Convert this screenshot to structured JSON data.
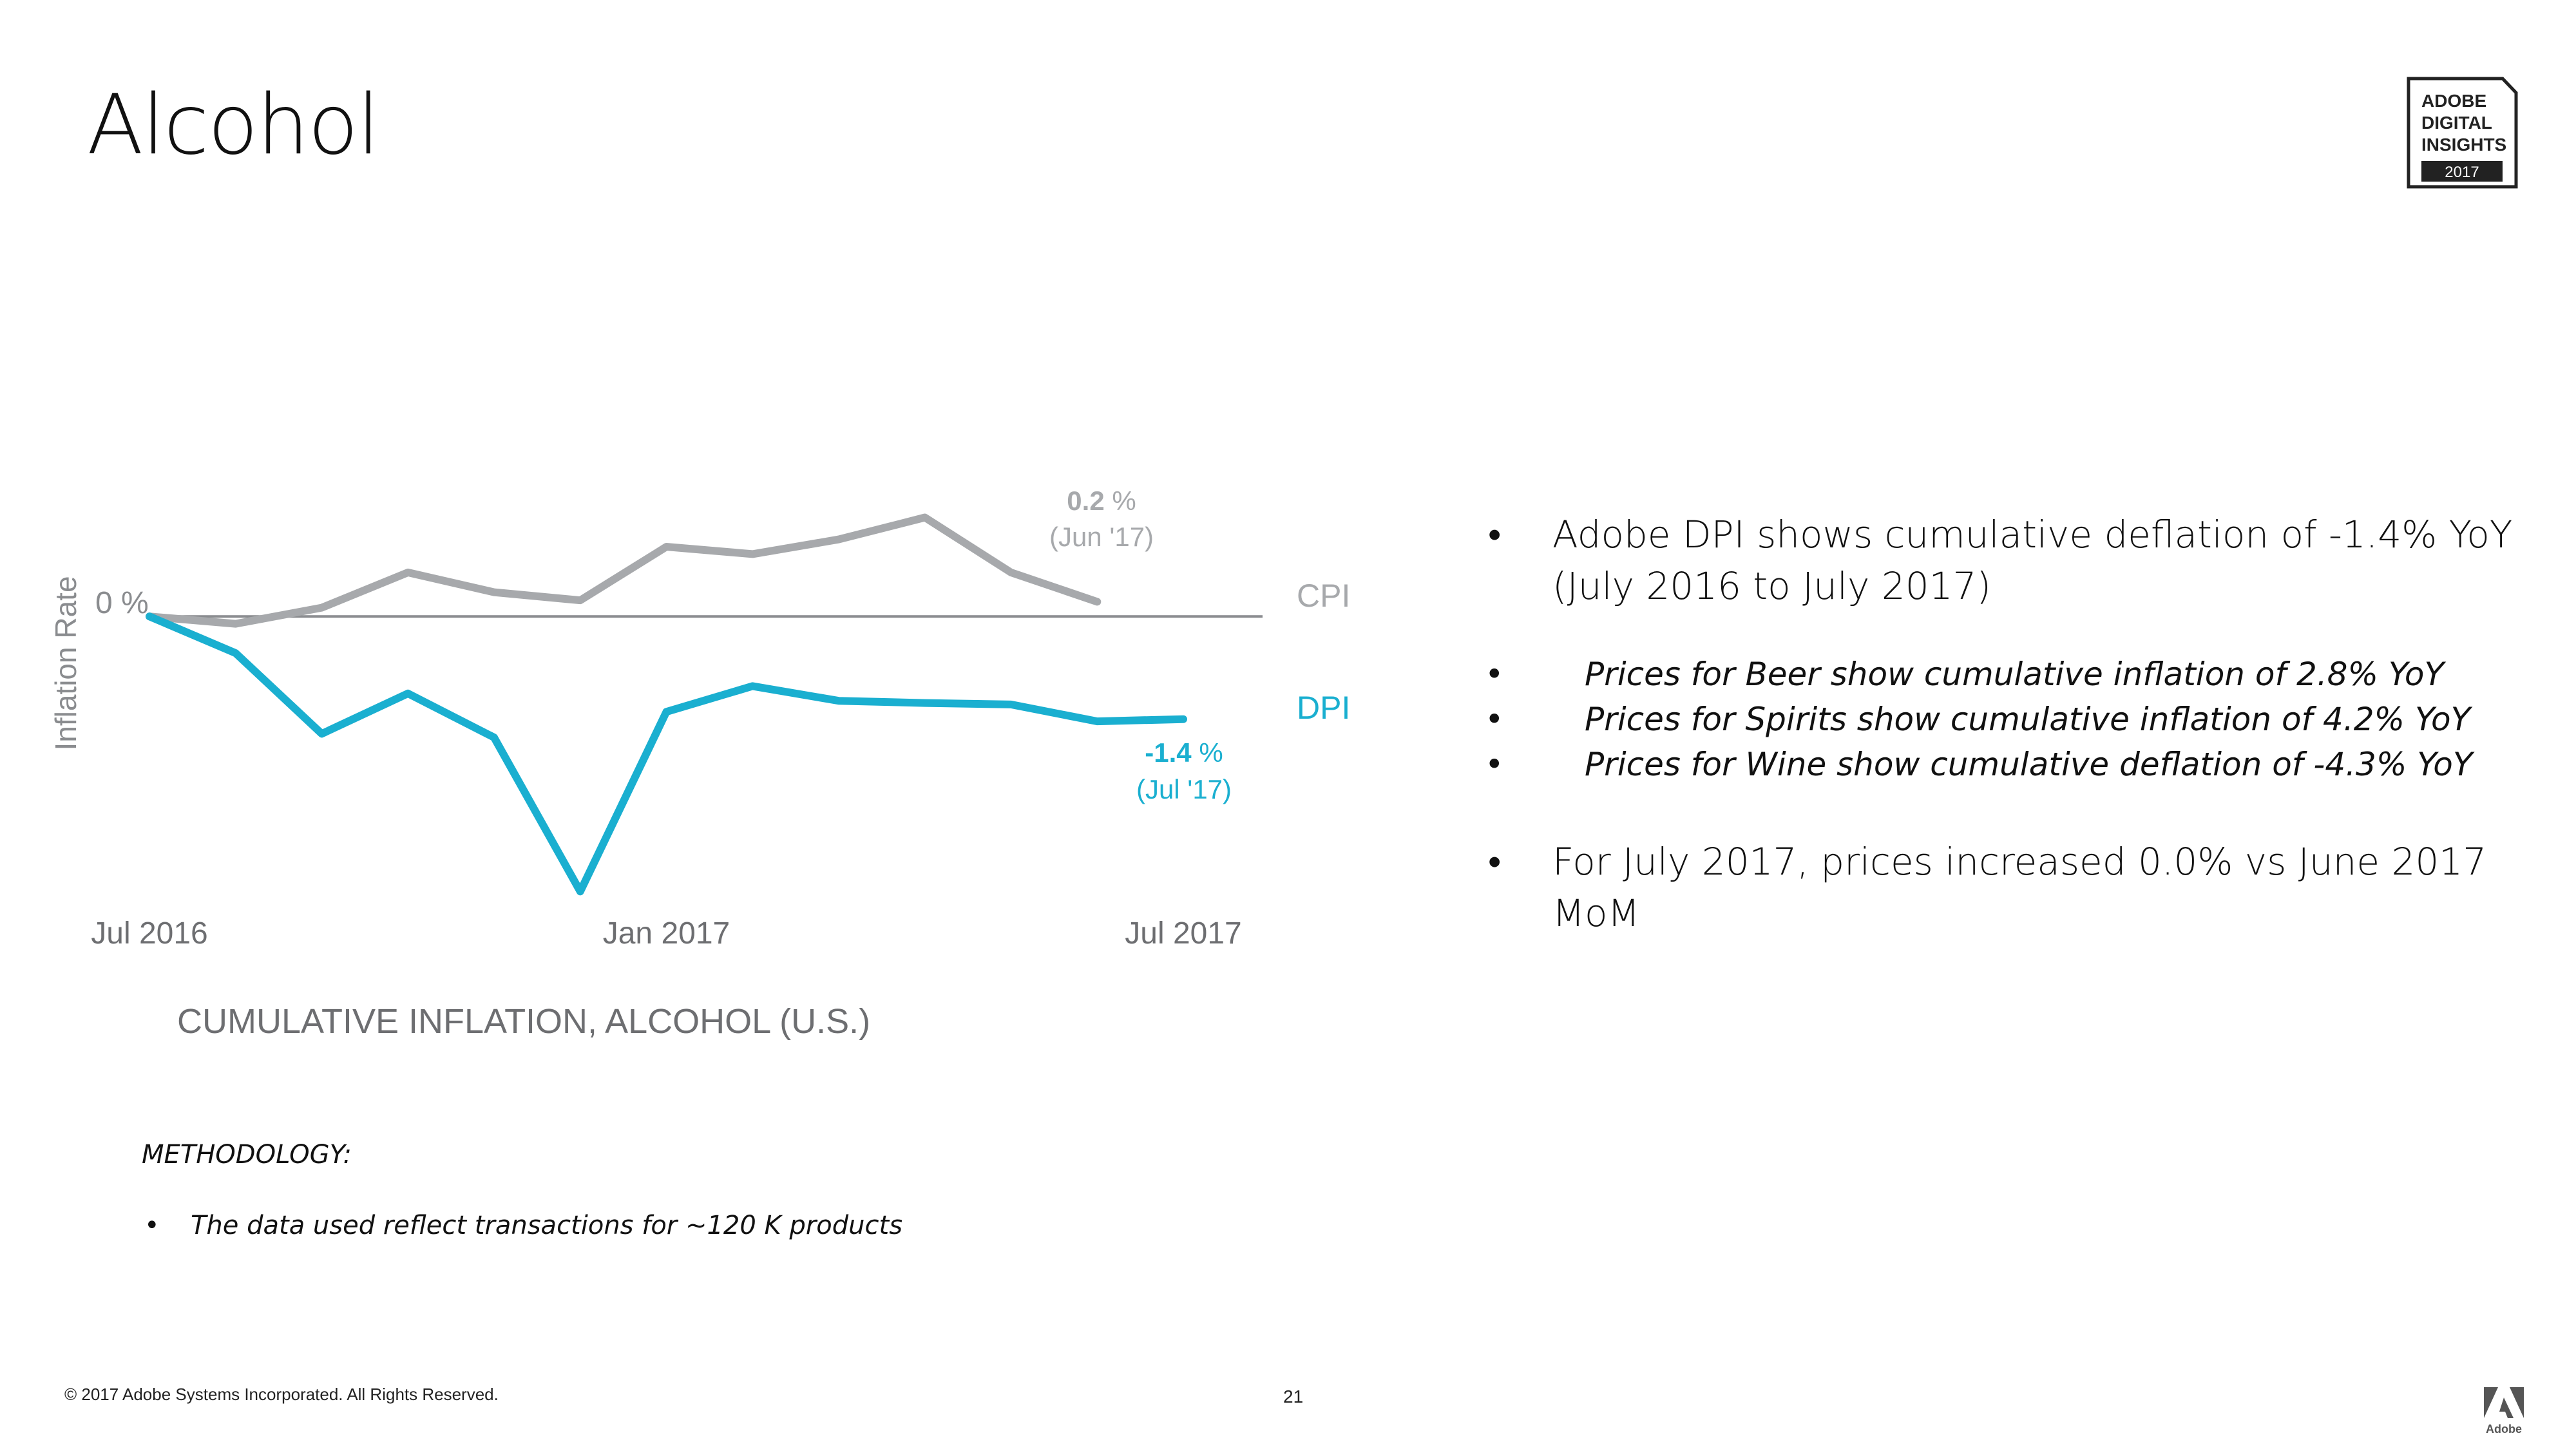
{
  "slide": {
    "title": "Alcohol",
    "badge": {
      "line1": "ADOBE",
      "line2": "DIGITAL",
      "line3": "INSIGHTS",
      "year": "2017"
    },
    "copyright": "© 2017 Adobe Systems Incorporated.  All Rights Reserved.",
    "page_number": "21",
    "logo_text": "Adobe",
    "methodology_label": "METHODOLOGY:",
    "methodology_items": [
      "The data used reflect transactions for ~120 K products"
    ],
    "bullets": [
      "Adobe DPI shows cumulative deflation of -1.4% YoY (July 2016 to July 2017)",
      "For July 2017, prices increased 0.0% vs June 2017 MoM"
    ],
    "sub_bullets": [
      "Prices for Beer show cumulative inflation of 2.8% YoY",
      "Prices for Spirits show cumulative inflation of 4.2% YoY",
      "Prices for Wine show cumulative deflation of -4.3% YoY"
    ]
  },
  "chart_data": {
    "type": "line",
    "title": "CUMULATIVE INFLATION, ALCOHOL (U.S.)",
    "ylabel": "Inflation Rate",
    "xlabel": "",
    "zero_label": "0 %",
    "x_months": [
      "2016-07",
      "2016-08",
      "2016-09",
      "2016-10",
      "2016-11",
      "2016-12",
      "2017-01",
      "2017-02",
      "2017-03",
      "2017-04",
      "2017-05",
      "2017-06",
      "2017-07"
    ],
    "x_ticks": [
      {
        "index": 0,
        "label": "Jul 2016"
      },
      {
        "index": 6,
        "label": "Jan 2017"
      },
      {
        "index": 12,
        "label": "Jul 2017"
      }
    ],
    "ylim": [
      -3.8,
      1.6
    ],
    "series": [
      {
        "name": "CPI",
        "color": "#a7a9ac",
        "values": [
          0.0,
          -0.1,
          0.12,
          0.6,
          0.33,
          0.22,
          0.95,
          0.85,
          1.05,
          1.35,
          0.6,
          0.2,
          null
        ],
        "end_value": "0.2",
        "end_unit": " %",
        "end_date": "(Jun '17)"
      },
      {
        "name": "DPI",
        "color": "#1aafd0",
        "values": [
          0.0,
          -0.5,
          -1.6,
          -1.05,
          -1.65,
          -3.75,
          -1.3,
          -0.95,
          -1.15,
          -1.18,
          -1.2,
          -1.43,
          -1.4
        ],
        "end_value": "-1.4",
        "end_unit": " %",
        "end_date": "(Jul '17)"
      }
    ],
    "grid": false,
    "legend": "right"
  }
}
